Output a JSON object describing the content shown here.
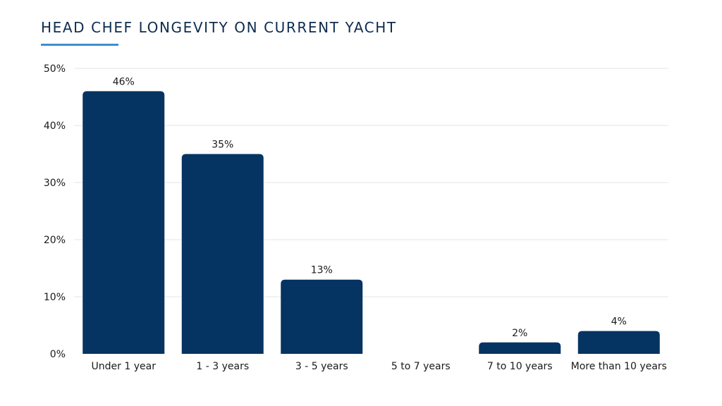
{
  "chart_data": {
    "type": "bar",
    "title": "HEAD CHEF LONGEVITY ON CURRENT YACHT",
    "categories": [
      "Under 1 year",
      "1 - 3 years",
      "3 - 5 years",
      "5 to 7 years",
      "7 to 10 years",
      "More than 10 years"
    ],
    "values": [
      46,
      35,
      13,
      0,
      2,
      4
    ],
    "data_labels": [
      "46%",
      "35%",
      "13%",
      "",
      "2%",
      "4%"
    ],
    "y_ticks": [
      "0%",
      "10%",
      "20%",
      "30%",
      "40%",
      "50%"
    ],
    "ylim": [
      0,
      50
    ],
    "grid": true,
    "legend": "none",
    "colors": {
      "bar": "#063462",
      "accent": "#3f8fd2",
      "grid": "#e6e6e6",
      "title": "#0d2c4f"
    }
  }
}
